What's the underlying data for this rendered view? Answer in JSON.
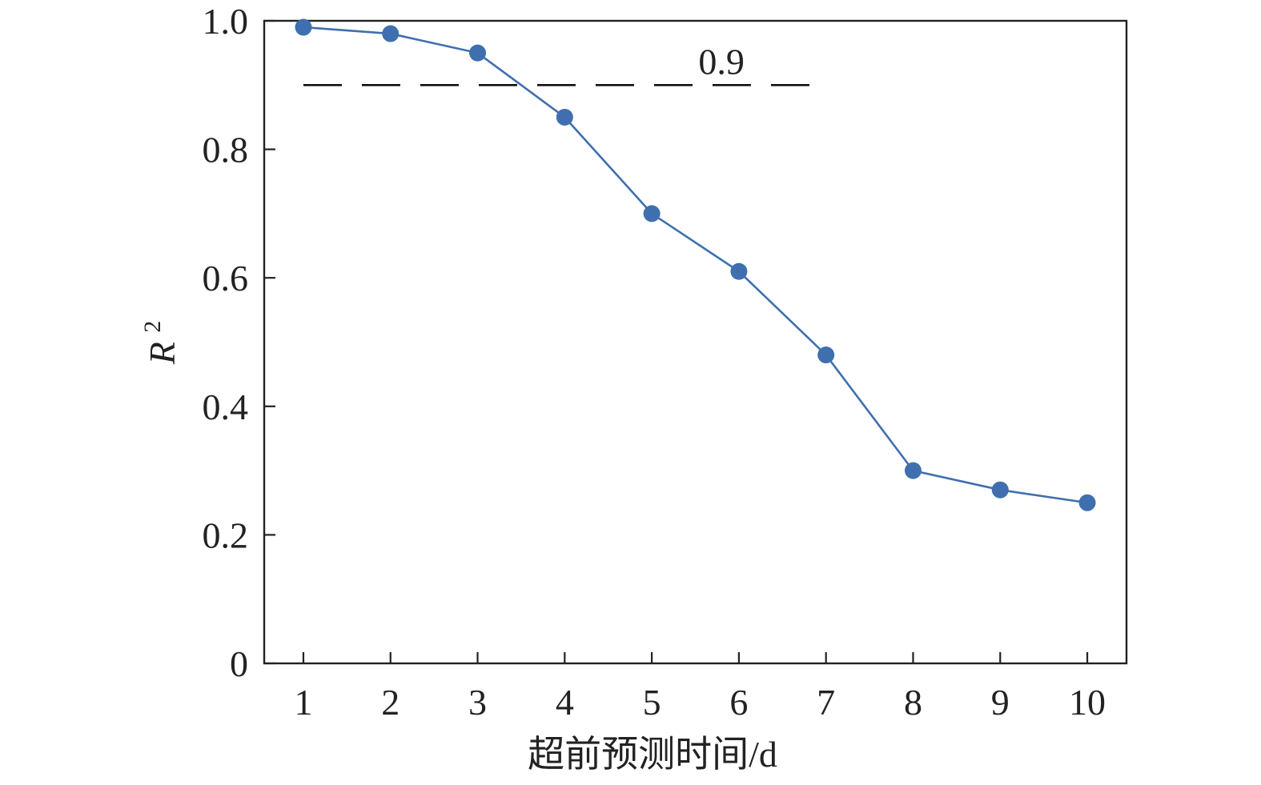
{
  "chart_data": {
    "type": "line",
    "title": "",
    "xlabel": "超前预测时间/d",
    "ylabel": {
      "base": "R",
      "sup": "2"
    },
    "x": [
      1,
      2,
      3,
      4,
      5,
      6,
      7,
      8,
      9,
      10
    ],
    "series": [
      {
        "values": [
          0.99,
          0.98,
          0.95,
          0.85,
          0.7,
          0.61,
          0.48,
          0.3,
          0.27,
          0.25
        ],
        "color": "#3f6fae"
      }
    ],
    "x_ticks": [
      "1",
      "2",
      "3",
      "4",
      "5",
      "6",
      "7",
      "8",
      "9",
      "10"
    ],
    "y_ticks": [
      {
        "value": 0,
        "label": "0"
      },
      {
        "value": 0.2,
        "label": "0.2"
      },
      {
        "value": 0.4,
        "label": "0.4"
      },
      {
        "value": 0.6,
        "label": "0.6"
      },
      {
        "value": 0.8,
        "label": "0.8"
      },
      {
        "value": 1.0,
        "label": "1.0"
      }
    ],
    "ylim": [
      0,
      1.0
    ],
    "xlim": [
      0.55,
      10.45
    ],
    "grid": false,
    "reference_line": {
      "y": 0.9,
      "x_from": 1,
      "x_to": 6.9,
      "label": "0.9",
      "style": "dashed",
      "color": "#111111"
    }
  }
}
